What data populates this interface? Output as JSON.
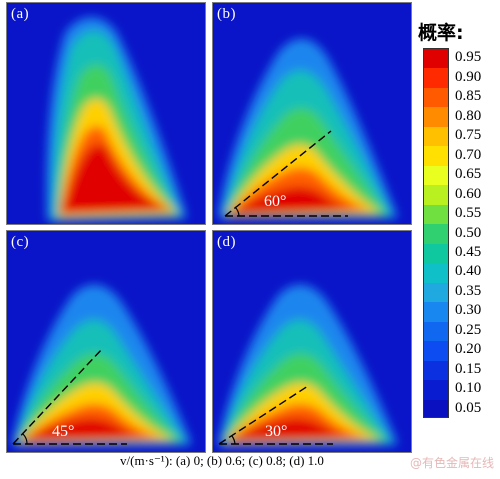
{
  "panels": [
    {
      "label": "(a)",
      "angle": ""
    },
    {
      "label": "(b)",
      "angle": "60°"
    },
    {
      "label": "(c)",
      "angle": "45°"
    },
    {
      "label": "(d)",
      "angle": "30°"
    }
  ],
  "legend": {
    "title": "概率:",
    "ticks": [
      "0.95",
      "0.90",
      "0.85",
      "0.80",
      "0.75",
      "0.70",
      "0.65",
      "0.60",
      "0.55",
      "0.50",
      "0.45",
      "0.40",
      "0.35",
      "0.30",
      "0.25",
      "0.20",
      "0.15",
      "0.10",
      "0.05"
    ],
    "colors": [
      "#e00000",
      "#ff2a00",
      "#ff5a00",
      "#ff8c00",
      "#ffc000",
      "#ffe000",
      "#e8ff20",
      "#b8f020",
      "#70e040",
      "#30d070",
      "#10c8a0",
      "#10c0c8",
      "#20a8e0",
      "#1888f0",
      "#1068f0",
      "#0c4cf0",
      "#0a30e0",
      "#0a1cd0",
      "#0a10c0"
    ]
  },
  "caption": "v/(m·s⁻¹): (a) 0; (b) 0.6; (c) 0.8; (d) 1.0",
  "watermark": "@有色金属在线"
}
